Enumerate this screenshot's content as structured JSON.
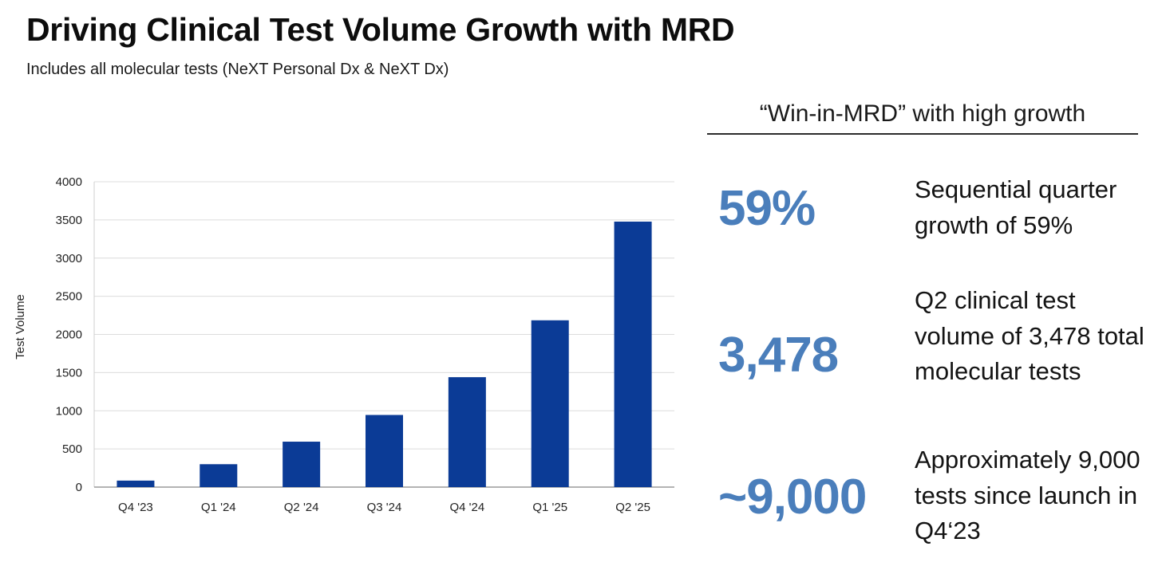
{
  "header": {
    "title": "Driving Clinical Test Volume Growth with MRD",
    "subtitle": "Includes all molecular tests (NeXT Personal Dx & NeXT Dx)"
  },
  "panel": {
    "heading": "“Win-in-MRD” with high growth",
    "stats": [
      {
        "value": "59%",
        "description": "Sequential quarter growth of 59%"
      },
      {
        "value": "3,478",
        "description": "Q2 clinical test volume of 3,478 total molecular tests"
      },
      {
        "value": "~9,000",
        "description": "Approximately 9,000 tests since launch in Q4‘23"
      }
    ]
  },
  "colors": {
    "bar": "#0b3b96",
    "stat": "#4a7ebb",
    "grid": "#dcdcdc"
  },
  "chart_data": {
    "type": "bar",
    "title": "",
    "xlabel": "",
    "ylabel": "Test Volume",
    "categories": [
      "Q4 '23",
      "Q1 '24",
      "Q2 '24",
      "Q3 '24",
      "Q4 '24",
      "Q1 '25",
      "Q2 '25"
    ],
    "values": [
      85,
      300,
      595,
      945,
      1440,
      2185,
      3478
    ],
    "ylim": [
      0,
      4000
    ],
    "yticks": [
      0,
      500,
      1000,
      1500,
      2000,
      2500,
      3000,
      3500,
      4000
    ],
    "grid": true,
    "legend": "none"
  }
}
